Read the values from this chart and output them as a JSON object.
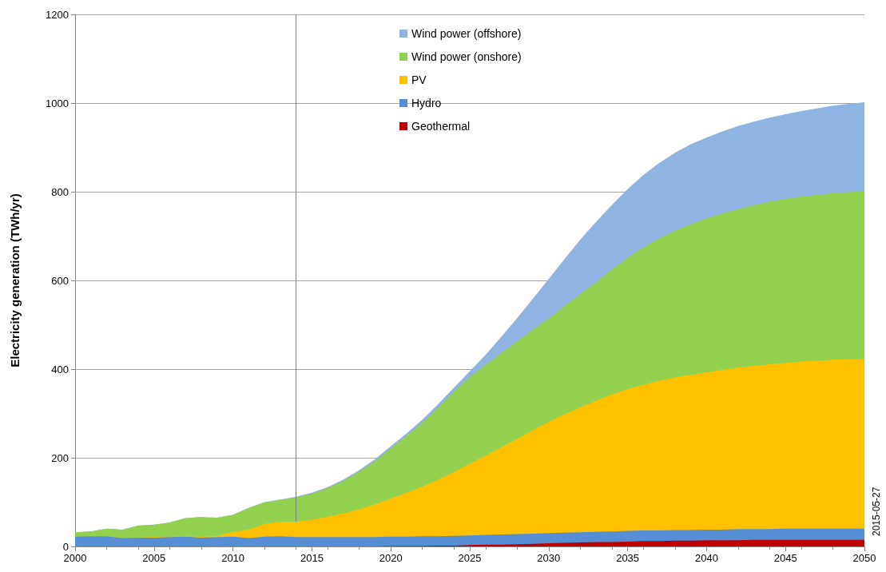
{
  "chart_data": {
    "type": "area",
    "stacked": true,
    "ylabel": "Electricity generation (TWh/yr)",
    "x": [
      2000,
      2001,
      2002,
      2003,
      2004,
      2005,
      2006,
      2007,
      2008,
      2009,
      2010,
      2011,
      2012,
      2013,
      2014,
      2015,
      2016,
      2017,
      2018,
      2019,
      2020,
      2021,
      2022,
      2023,
      2024,
      2025,
      2026,
      2027,
      2028,
      2029,
      2030,
      2031,
      2032,
      2033,
      2034,
      2035,
      2036,
      2037,
      2038,
      2039,
      2040,
      2041,
      2042,
      2043,
      2044,
      2045,
      2046,
      2047,
      2048,
      2049,
      2050
    ],
    "series": [
      {
        "name": "Geothermal",
        "color": "#c00000",
        "values": [
          0,
          0,
          0,
          0,
          0,
          0,
          0,
          0,
          0,
          0,
          0,
          0,
          0,
          0,
          0,
          0,
          0,
          0,
          0,
          0,
          1,
          1,
          1,
          2,
          2,
          3,
          4,
          4,
          5,
          6,
          7,
          8,
          9,
          10,
          10,
          11,
          12,
          12,
          13,
          13,
          14,
          14,
          14,
          15,
          15,
          15,
          15,
          15,
          15,
          15,
          15
        ]
      },
      {
        "name": "Hydro",
        "color": "#558ed5",
        "values": [
          22,
          23,
          23,
          19,
          20,
          20,
          21,
          22,
          20,
          21,
          22,
          19,
          22,
          23,
          21,
          21,
          21,
          21,
          21,
          21,
          21,
          21,
          22,
          21,
          22,
          22,
          22,
          23,
          23,
          23,
          23,
          23,
          23,
          23,
          24,
          24,
          24,
          24,
          24,
          24,
          24,
          24,
          25,
          24,
          24,
          25,
          25,
          25,
          25,
          25,
          25
        ]
      },
      {
        "name": "PV",
        "color": "#ffc000",
        "values": [
          0,
          0,
          0,
          0,
          0,
          1,
          1,
          1,
          2,
          3,
          11,
          19,
          29,
          33,
          35,
          40,
          46,
          54,
          63,
          74,
          86,
          99,
          112,
          128,
          144,
          162,
          179,
          197,
          215,
          233,
          251,
          267,
          282,
          296,
          309,
          320,
          329,
          338,
          344,
          350,
          355,
          360,
          364,
          368,
          372,
          374,
          377,
          379,
          381,
          382,
          383
        ]
      },
      {
        "name": "Wind power (onshore)",
        "color": "#92d050",
        "values": [
          10,
          11,
          17,
          19,
          27,
          28,
          32,
          41,
          44,
          41,
          38,
          49,
          48,
          49,
          55,
          58,
          65,
          73,
          85,
          98,
          114,
          129,
          145,
          163,
          181,
          196,
          205,
          213,
          220,
          227,
          234,
          245,
          256,
          267,
          282,
          297,
          310,
          321,
          331,
          340,
          347,
          353,
          358,
          363,
          367,
          370,
          372,
          374,
          376,
          377,
          378
        ]
      },
      {
        "name": "Wind power (offshore)",
        "color": "#8eb4e3",
        "values": [
          0,
          0,
          0,
          0,
          0,
          0,
          0,
          0,
          0,
          0,
          0,
          0,
          1,
          1,
          1,
          2,
          2,
          3,
          3,
          4,
          4,
          5,
          6,
          7,
          9,
          12,
          22,
          36,
          52,
          70,
          88,
          105,
          122,
          136,
          145,
          154,
          163,
          170,
          176,
          180,
          182,
          185,
          187,
          188,
          189,
          191,
          193,
          195,
          197,
          199,
          201
        ]
      }
    ],
    "xlim": [
      2000,
      2050
    ],
    "xticks": [
      2000,
      2005,
      2010,
      2015,
      2020,
      2025,
      2030,
      2035,
      2040,
      2045,
      2050
    ],
    "ylim": [
      0,
      1200
    ],
    "yticks": [
      0,
      200,
      400,
      600,
      800,
      1000,
      1200
    ],
    "grid": "y",
    "legend": "top",
    "marker": "none",
    "ref_lines": [
      {
        "axis": "x",
        "value": 2014,
        "color": "#808080"
      }
    ],
    "annotations": [
      "2015-05-27"
    ]
  }
}
